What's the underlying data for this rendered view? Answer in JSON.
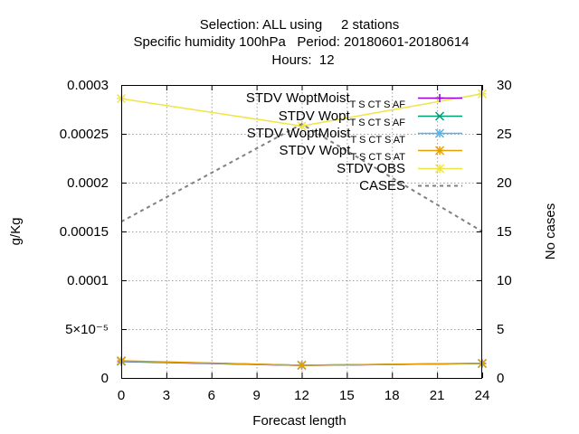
{
  "chart_data": {
    "type": "line",
    "title": [
      "Selection: ALL using     2 stations",
      "Specific humidity 100hPa   Period: 20180601-20180614",
      "Hours:  12"
    ],
    "xlabel": "Forecast length",
    "ylabel": "g/Kg",
    "y2label": "No cases",
    "xlim": [
      0,
      24
    ],
    "ylim": [
      0,
      0.0003
    ],
    "y2lim": [
      0,
      30
    ],
    "xticks": [
      "0",
      "3",
      "6",
      "9",
      "12",
      "15",
      "18",
      "21",
      "24"
    ],
    "yticks": [
      "0",
      "5×10⁻⁵",
      "0.0001",
      "0.00015",
      "0.0002",
      "0.00025",
      "0.0003"
    ],
    "y2ticks": [
      "0",
      "5",
      "10",
      "15",
      "20",
      "25",
      "30"
    ],
    "grid": true,
    "legend_position": "top-right",
    "series": [
      {
        "name": "STDV WoptMoist_TSC_TSA_F",
        "color": "#9400d3",
        "marker": "cross",
        "axis": "y",
        "dashed": false,
        "x": [
          0,
          12,
          24
        ],
        "y": [
          1.68e-05,
          1.28e-05,
          1.48e-05
        ]
      },
      {
        "name": "STDV Wopt_TSC_TSA_F",
        "color": "#009e73",
        "marker": "x",
        "axis": "y",
        "dashed": false,
        "x": [
          0,
          12,
          24
        ],
        "y": [
          1.7e-05,
          1.3e-05,
          1.48e-05
        ]
      },
      {
        "name": "STDV WoptMoist_TSC_TSA_T",
        "color": "#56b4e9",
        "marker": "star",
        "axis": "y",
        "dashed": false,
        "x": [
          0,
          12,
          24
        ],
        "y": [
          1.72e-05,
          1.3e-05,
          1.49e-05
        ]
      },
      {
        "name": "STDV Wopt_TSC_TSA_T",
        "color": "#e69f00",
        "marker": "star",
        "axis": "y",
        "dashed": false,
        "x": [
          0,
          12,
          24
        ],
        "y": [
          1.76e-05,
          1.3e-05,
          1.5e-05
        ]
      },
      {
        "name": "STDV OBS",
        "color": "#f0e442",
        "marker": "star",
        "axis": "y",
        "dashed": false,
        "x": [
          0,
          12,
          24
        ],
        "y": [
          0.000286,
          0.000258,
          0.000291
        ]
      },
      {
        "name": "CASES",
        "color": "#808080",
        "marker": "none",
        "axis": "y2",
        "dashed": true,
        "x": [
          0,
          12,
          24
        ],
        "y": [
          16,
          26,
          15
        ]
      }
    ]
  }
}
